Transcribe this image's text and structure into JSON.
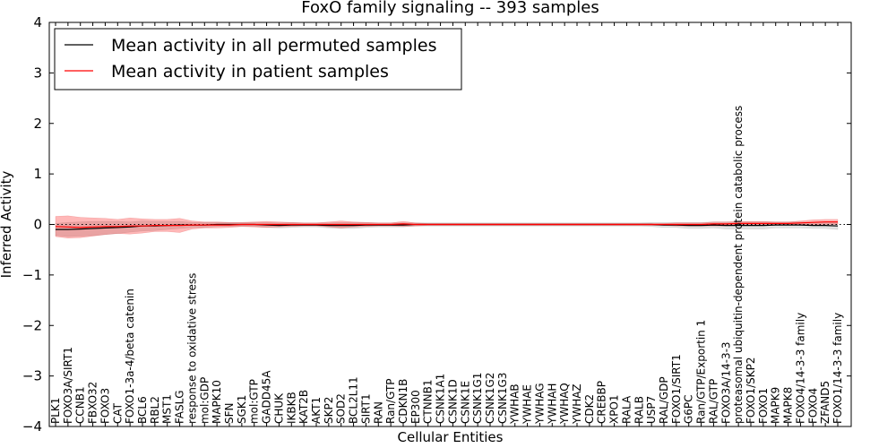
{
  "chart_data": {
    "type": "line",
    "title": "FoxO family signaling -- 393 samples",
    "xlabel": "Cellular Entities",
    "ylabel": "Inferred Activity",
    "ylim": [
      -4,
      4
    ],
    "yticks": [
      -4,
      -3,
      -2,
      -1,
      0,
      1,
      2,
      3,
      4
    ],
    "ytick_labels": [
      "−4",
      "−3",
      "−2",
      "−1",
      "0",
      "1",
      "2",
      "3",
      "4"
    ],
    "legend_position": "top-left",
    "reference_line": 0,
    "categories": [
      "PLK1",
      "FOXO3A/SIRT1",
      "CCNB1",
      "FBXO32",
      "FOXO3",
      "CAT",
      "FOXO1-3a-4/beta catenin",
      "BCL6",
      "RBL2",
      "MST1",
      "FASLG",
      "response to oxidative stress",
      "mol:GDP",
      "MAPK10",
      "SFN",
      "SGK1",
      "mol:GTP",
      "GADD45A",
      "CHUK",
      "IKBKB",
      "KAT2B",
      "AKT1",
      "SKP2",
      "SOD2",
      "BCL2L11",
      "SIRT1",
      "RAN",
      "Ran/GTP",
      "CDKN1B",
      "EP300",
      "CTNNB1",
      "CSNK1A1",
      "CSNK1D",
      "CSNK1E",
      "CSNK1G1",
      "CSNK1G2",
      "CSNK1G3",
      "YWHAB",
      "YWHAE",
      "YWHAG",
      "YWHAH",
      "YWHAQ",
      "YWHAZ",
      "CDK2",
      "CREBBP",
      "XPO1",
      "RALA",
      "RALB",
      "USP7",
      "RAL/GDP",
      "FOXO1/SIRT1",
      "G6PC",
      "Ran/GTP/Exportin 1",
      "RAL/GTP",
      "FOXO3A/14-3-3",
      "proteasomal ubiquitin-dependent protein catabolic process",
      "FOXO1/SKP2",
      "FOXO1",
      "MAPK9",
      "MAPK8",
      "FOXO4/14-3-3 family",
      "FOXO4",
      "ZFAND5",
      "FOXO1/14-3-3 family"
    ],
    "series": [
      {
        "name": "Mean activity in all permuted samples",
        "color": "#000000",
        "values": [
          -0.1,
          -0.1,
          -0.09,
          -0.08,
          -0.07,
          -0.06,
          -0.05,
          -0.03,
          -0.03,
          -0.02,
          -0.01,
          -0.01,
          -0.01,
          0,
          0,
          0,
          0,
          -0.01,
          -0.02,
          -0.01,
          -0.01,
          -0.01,
          -0.02,
          -0.02,
          -0.02,
          -0.01,
          -0.01,
          -0.01,
          -0.01,
          0,
          0,
          0,
          0,
          0,
          0,
          0,
          0,
          0,
          0,
          0,
          0,
          0,
          0,
          0,
          0,
          0,
          0,
          0,
          0,
          -0.01,
          -0.01,
          -0.02,
          -0.02,
          -0.01,
          -0.02,
          -0.02,
          -0.02,
          -0.02,
          -0.01,
          -0.01,
          -0.01,
          -0.02,
          -0.02,
          -0.03
        ],
        "band": [
          0.12,
          0.14,
          0.14,
          0.14,
          0.13,
          0.12,
          0.1,
          0.1,
          0.09,
          0.08,
          0.07,
          0.05,
          0.05,
          0.04,
          0.04,
          0.04,
          0.04,
          0.05,
          0.05,
          0.05,
          0.04,
          0.04,
          0.05,
          0.06,
          0.06,
          0.05,
          0.04,
          0.04,
          0.04,
          0.03,
          0.03,
          0.03,
          0.03,
          0.03,
          0.03,
          0.03,
          0.03,
          0.03,
          0.03,
          0.03,
          0.03,
          0.03,
          0.03,
          0.03,
          0.03,
          0.03,
          0.03,
          0.03,
          0.04,
          0.05,
          0.05,
          0.06,
          0.06,
          0.06,
          0.07,
          0.07,
          0.07,
          0.07,
          0.06,
          0.06,
          0.06,
          0.06,
          0.06,
          0.07
        ]
      },
      {
        "name": "Mean activity in patient samples",
        "color": "#ff0000",
        "values": [
          -0.04,
          -0.05,
          -0.06,
          -0.05,
          -0.04,
          -0.04,
          -0.03,
          -0.03,
          -0.02,
          -0.02,
          -0.02,
          -0.01,
          -0.01,
          -0.01,
          -0.01,
          0,
          0,
          0,
          0,
          0,
          0,
          0,
          0,
          0,
          0,
          0,
          0,
          0,
          0.01,
          0,
          0,
          0,
          0,
          0,
          0,
          0,
          0,
          0,
          0,
          0,
          0,
          0,
          0,
          0,
          0,
          0,
          0,
          0,
          0,
          0,
          0,
          0,
          0,
          0.01,
          0.01,
          0.02,
          0.02,
          0.02,
          0.02,
          0.02,
          0.03,
          0.04,
          0.05,
          0.05
        ],
        "band": [
          0.2,
          0.22,
          0.2,
          0.18,
          0.16,
          0.14,
          0.16,
          0.14,
          0.12,
          0.12,
          0.14,
          0.08,
          0.06,
          0.06,
          0.05,
          0.04,
          0.05,
          0.06,
          0.05,
          0.04,
          0.03,
          0.03,
          0.05,
          0.07,
          0.05,
          0.04,
          0.03,
          0.03,
          0.05,
          0.03,
          0.02,
          0.02,
          0.02,
          0.02,
          0.02,
          0.02,
          0.02,
          0.02,
          0.02,
          0.02,
          0.02,
          0.02,
          0.02,
          0.02,
          0.02,
          0.02,
          0.02,
          0.02,
          0.02,
          0.02,
          0.03,
          0.03,
          0.03,
          0.04,
          0.04,
          0.04,
          0.04,
          0.04,
          0.03,
          0.03,
          0.04,
          0.05,
          0.05,
          0.05
        ]
      }
    ]
  }
}
